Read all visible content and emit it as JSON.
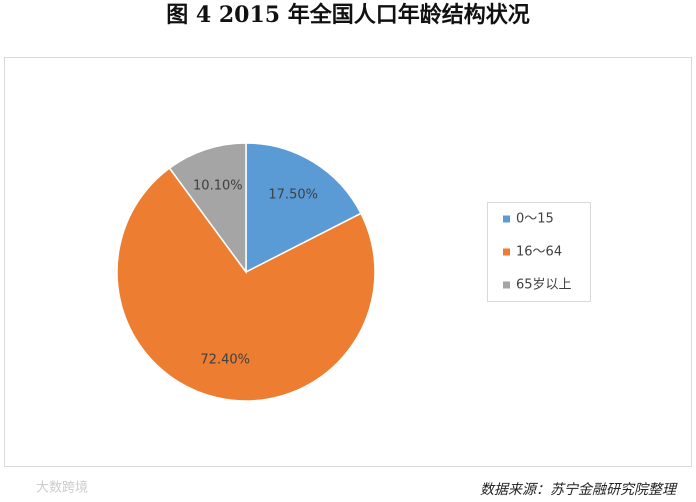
{
  "chart_data": {
    "type": "pie",
    "title": "图 4 2015 年全国人口年龄结构状况",
    "categories": [
      "0～15",
      "16～64",
      "65岁以上"
    ],
    "values": [
      17.5,
      72.4,
      10.1
    ],
    "value_labels": [
      "17.50%",
      "72.40%",
      "10.10%"
    ],
    "colors": [
      "#5b9bd5",
      "#ed7d31",
      "#a5a5a5"
    ],
    "legend": "right",
    "source": "数据来源：苏宁金融研究院整理",
    "watermark": "大数跨境"
  }
}
